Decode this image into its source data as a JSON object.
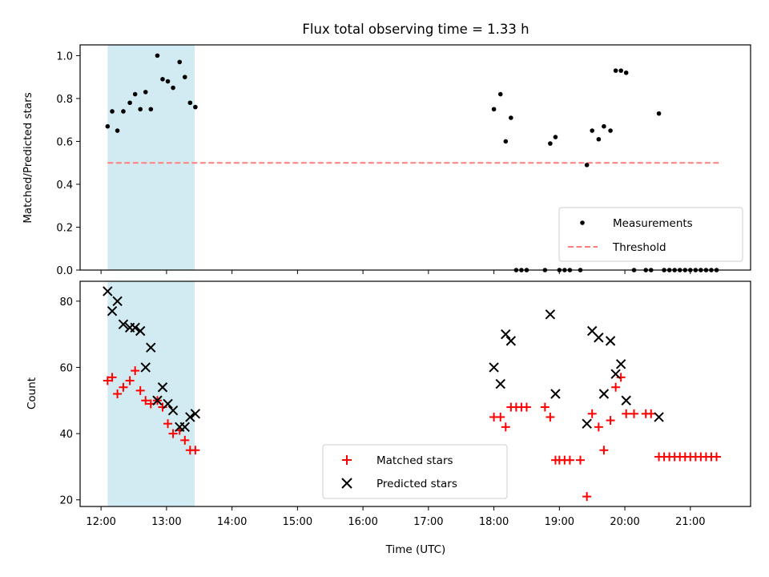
{
  "chart_data": {
    "title": "Flux total observing time = 1.33 h",
    "xlabel": "Time (UTC)",
    "x_ticks": [
      "12:00",
      "13:00",
      "14:00",
      "15:00",
      "16:00",
      "17:00",
      "18:00",
      "19:00",
      "20:00",
      "21:00"
    ],
    "x_range_hours": [
      11.68,
      21.92
    ],
    "highlight_span_hours": [
      12.1,
      13.43
    ],
    "highlight_color": "#add8e6",
    "panels": [
      {
        "type": "scatter",
        "ylabel": "Matched/Predicted stars",
        "ylim": [
          0,
          1.05
        ],
        "y_ticks": [
          "0.0",
          "0.2",
          "0.4",
          "0.6",
          "0.8",
          "1.0"
        ],
        "legend_position": "lower right",
        "series": [
          {
            "name": "Measurements",
            "marker": "dot",
            "color": "#000000",
            "points": [
              [
                12.1,
                0.67
              ],
              [
                12.17,
                0.74
              ],
              [
                12.25,
                0.65
              ],
              [
                12.34,
                0.74
              ],
              [
                12.44,
                0.78
              ],
              [
                12.52,
                0.82
              ],
              [
                12.6,
                0.75
              ],
              [
                12.68,
                0.83
              ],
              [
                12.76,
                0.75
              ],
              [
                12.86,
                1.0
              ],
              [
                12.94,
                0.89
              ],
              [
                13.02,
                0.88
              ],
              [
                13.1,
                0.85
              ],
              [
                13.2,
                0.97
              ],
              [
                13.28,
                0.9
              ],
              [
                13.36,
                0.78
              ],
              [
                13.44,
                0.76
              ],
              [
                18.0,
                0.75
              ],
              [
                18.1,
                0.82
              ],
              [
                18.18,
                0.6
              ],
              [
                18.26,
                0.71
              ],
              [
                18.34,
                0.0
              ],
              [
                18.42,
                0.0
              ],
              [
                18.5,
                0.0
              ],
              [
                18.78,
                0.0
              ],
              [
                18.86,
                0.59
              ],
              [
                18.94,
                0.62
              ],
              [
                19.0,
                0.0
              ],
              [
                19.08,
                0.0
              ],
              [
                19.16,
                0.0
              ],
              [
                19.32,
                0.0
              ],
              [
                19.42,
                0.49
              ],
              [
                19.5,
                0.65
              ],
              [
                19.6,
                0.61
              ],
              [
                19.68,
                0.67
              ],
              [
                19.78,
                0.65
              ],
              [
                19.86,
                0.93
              ],
              [
                19.94,
                0.93
              ],
              [
                20.02,
                0.92
              ],
              [
                20.14,
                0.0
              ],
              [
                20.32,
                0.0
              ],
              [
                20.4,
                0.0
              ],
              [
                20.52,
                0.73
              ],
              [
                20.6,
                0.0
              ],
              [
                20.68,
                0.0
              ],
              [
                20.76,
                0.0
              ],
              [
                20.84,
                0.0
              ],
              [
                20.92,
                0.0
              ],
              [
                21.0,
                0.0
              ],
              [
                21.08,
                0.0
              ],
              [
                21.16,
                0.0
              ],
              [
                21.24,
                0.0
              ],
              [
                21.32,
                0.0
              ],
              [
                21.4,
                0.0
              ]
            ]
          },
          {
            "name": "Threshold",
            "type": "line",
            "style": "dashed",
            "color": "#ff7f7f",
            "points": [
              [
                12.1,
                0.5
              ],
              [
                21.48,
                0.5
              ]
            ]
          }
        ]
      },
      {
        "type": "scatter",
        "ylabel": "Count",
        "ylim": [
          18,
          86
        ],
        "y_ticks": [
          "20",
          "40",
          "60",
          "80"
        ],
        "legend_position": "lower center",
        "series": [
          {
            "name": "Matched stars",
            "marker": "plus",
            "color": "#ff0000",
            "points": [
              [
                12.1,
                56
              ],
              [
                12.17,
                57
              ],
              [
                12.25,
                52
              ],
              [
                12.34,
                54
              ],
              [
                12.44,
                56
              ],
              [
                12.52,
                59
              ],
              [
                12.6,
                53
              ],
              [
                12.68,
                50
              ],
              [
                12.76,
                49
              ],
              [
                12.86,
                50
              ],
              [
                12.94,
                48
              ],
              [
                13.02,
                43
              ],
              [
                13.1,
                40
              ],
              [
                13.2,
                41
              ],
              [
                13.28,
                38
              ],
              [
                13.36,
                35
              ],
              [
                13.44,
                35
              ],
              [
                18.0,
                45
              ],
              [
                18.1,
                45
              ],
              [
                18.18,
                42
              ],
              [
                18.26,
                48
              ],
              [
                18.34,
                48
              ],
              [
                18.42,
                48
              ],
              [
                18.5,
                48
              ],
              [
                18.78,
                48
              ],
              [
                18.86,
                45
              ],
              [
                18.94,
                32
              ],
              [
                19.0,
                32
              ],
              [
                19.08,
                32
              ],
              [
                19.16,
                32
              ],
              [
                19.32,
                32
              ],
              [
                19.42,
                21
              ],
              [
                19.5,
                46
              ],
              [
                19.6,
                42
              ],
              [
                19.68,
                35
              ],
              [
                19.78,
                44
              ],
              [
                19.86,
                54
              ],
              [
                19.94,
                57
              ],
              [
                20.02,
                46
              ],
              [
                20.14,
                46
              ],
              [
                20.32,
                46
              ],
              [
                20.4,
                46
              ],
              [
                20.52,
                33
              ],
              [
                20.6,
                33
              ],
              [
                20.68,
                33
              ],
              [
                20.76,
                33
              ],
              [
                20.84,
                33
              ],
              [
                20.92,
                33
              ],
              [
                21.0,
                33
              ],
              [
                21.08,
                33
              ],
              [
                21.16,
                33
              ],
              [
                21.24,
                33
              ],
              [
                21.32,
                33
              ],
              [
                21.4,
                33
              ]
            ]
          },
          {
            "name": "Predicted stars",
            "marker": "x",
            "color": "#000000",
            "points": [
              [
                12.1,
                83
              ],
              [
                12.17,
                77
              ],
              [
                12.25,
                80
              ],
              [
                12.34,
                73
              ],
              [
                12.44,
                72
              ],
              [
                12.52,
                72
              ],
              [
                12.6,
                71
              ],
              [
                12.68,
                60
              ],
              [
                12.76,
                66
              ],
              [
                12.86,
                50
              ],
              [
                12.94,
                54
              ],
              [
                13.02,
                49
              ],
              [
                13.1,
                47
              ],
              [
                13.2,
                42
              ],
              [
                13.28,
                42
              ],
              [
                13.36,
                45
              ],
              [
                13.44,
                46
              ],
              [
                18.0,
                60
              ],
              [
                18.1,
                55
              ],
              [
                18.18,
                70
              ],
              [
                18.26,
                68
              ],
              [
                18.86,
                76
              ],
              [
                18.94,
                52
              ],
              [
                19.42,
                43
              ],
              [
                19.5,
                71
              ],
              [
                19.6,
                69
              ],
              [
                19.68,
                52
              ],
              [
                19.78,
                68
              ],
              [
                19.86,
                58
              ],
              [
                19.94,
                61
              ],
              [
                20.02,
                50
              ],
              [
                20.52,
                45
              ]
            ]
          }
        ]
      }
    ]
  }
}
